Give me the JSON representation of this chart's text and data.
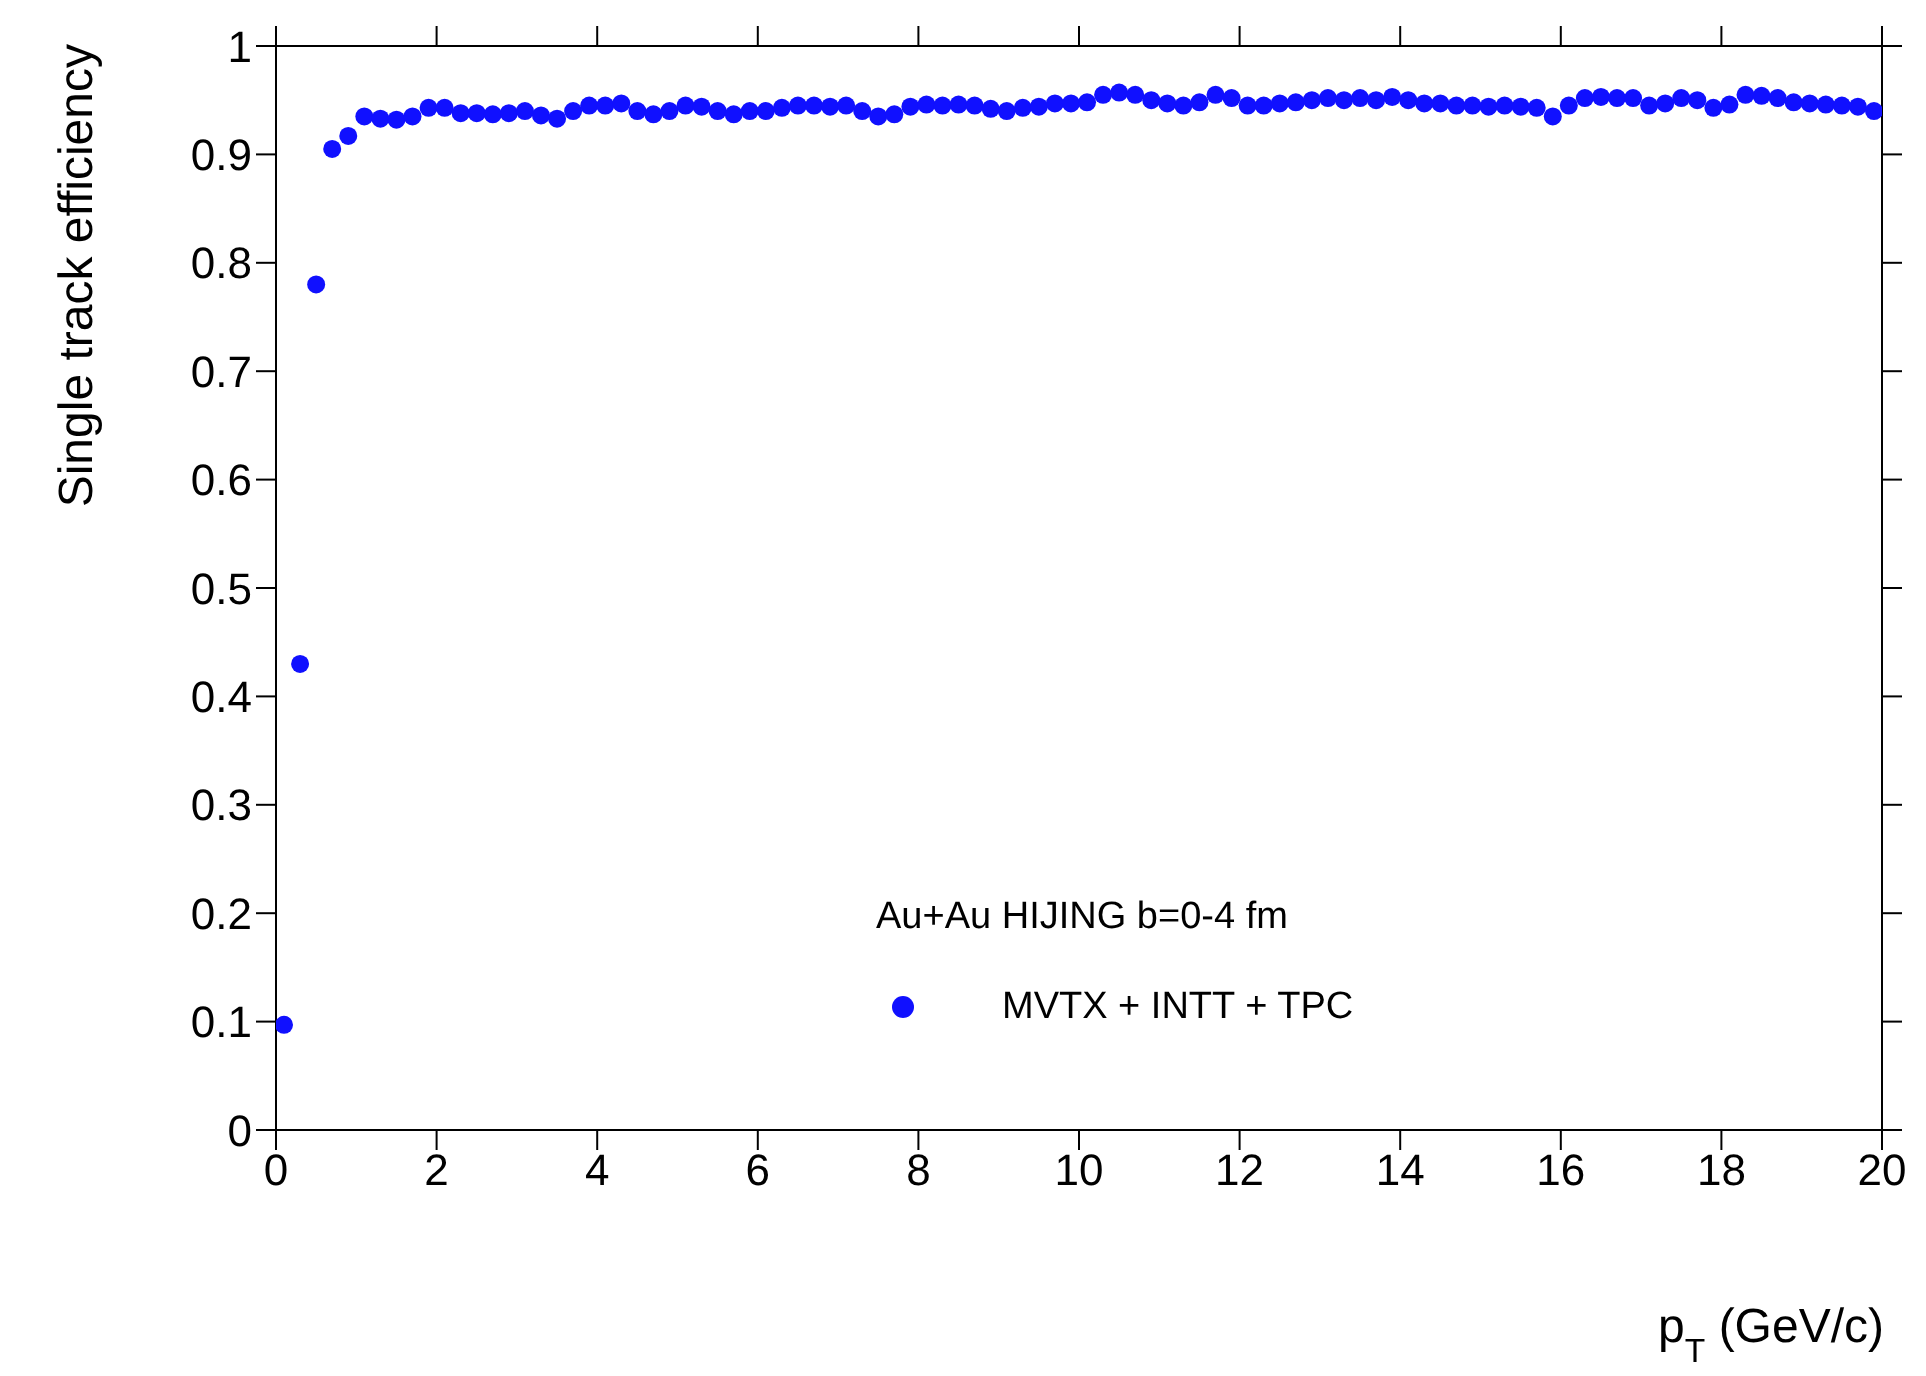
{
  "chart_data": {
    "type": "scatter",
    "xlabel": "p$_{T}$ (GeV/c)",
    "ylabel": "Single track efficiency",
    "legend_title": "Au+Au HIJING b=0-4 fm",
    "series": [
      {
        "name": "MVTX + INTT + TPC",
        "color": "#1010ff",
        "x": [
          0.1,
          0.3,
          0.5,
          0.7,
          0.9,
          1.1,
          1.3,
          1.5,
          1.7,
          1.9,
          2.1,
          2.3,
          2.5,
          2.7,
          2.9,
          3.1,
          3.3,
          3.5,
          3.7,
          3.9,
          4.1,
          4.3,
          4.5,
          4.7,
          4.9,
          5.1,
          5.3,
          5.5,
          5.7,
          5.9,
          6.1,
          6.3,
          6.5,
          6.7,
          6.9,
          7.1,
          7.3,
          7.5,
          7.7,
          7.9,
          8.1,
          8.3,
          8.5,
          8.7,
          8.9,
          9.1,
          9.3,
          9.5,
          9.7,
          9.9,
          10.1,
          10.3,
          10.5,
          10.7,
          10.9,
          11.1,
          11.3,
          11.5,
          11.7,
          11.9,
          12.1,
          12.3,
          12.5,
          12.7,
          12.9,
          13.1,
          13.3,
          13.5,
          13.7,
          13.9,
          14.1,
          14.3,
          14.5,
          14.7,
          14.9,
          15.1,
          15.3,
          15.5,
          15.7,
          15.9,
          16.1,
          16.3,
          16.5,
          16.7,
          16.9,
          17.1,
          17.3,
          17.5,
          17.7,
          17.9,
          18.1,
          18.3,
          18.5,
          18.7,
          18.9,
          19.1,
          19.3,
          19.5,
          19.7,
          19.9
        ],
        "values": [
          0.097,
          0.43,
          0.78,
          0.905,
          0.917,
          0.935,
          0.933,
          0.932,
          0.935,
          0.943,
          0.943,
          0.938,
          0.938,
          0.937,
          0.938,
          0.94,
          0.936,
          0.933,
          0.94,
          0.945,
          0.945,
          0.947,
          0.94,
          0.937,
          0.94,
          0.945,
          0.944,
          0.94,
          0.937,
          0.94,
          0.94,
          0.943,
          0.945,
          0.945,
          0.944,
          0.945,
          0.94,
          0.935,
          0.937,
          0.944,
          0.946,
          0.945,
          0.946,
          0.945,
          0.942,
          0.94,
          0.943,
          0.944,
          0.947,
          0.947,
          0.948,
          0.955,
          0.957,
          0.955,
          0.95,
          0.947,
          0.945,
          0.948,
          0.955,
          0.952,
          0.945,
          0.945,
          0.947,
          0.948,
          0.95,
          0.952,
          0.95,
          0.952,
          0.95,
          0.953,
          0.95,
          0.947,
          0.947,
          0.945,
          0.945,
          0.944,
          0.945,
          0.944,
          0.943,
          0.935,
          0.945,
          0.952,
          0.953,
          0.952,
          0.952,
          0.945,
          0.947,
          0.952,
          0.95,
          0.943,
          0.946,
          0.955,
          0.954,
          0.952,
          0.948,
          0.947,
          0.946,
          0.945,
          0.944,
          0.94
        ]
      }
    ],
    "xlim": [
      0,
      20
    ],
    "xticks": [
      0,
      2,
      4,
      6,
      8,
      10,
      12,
      14,
      16,
      18,
      20
    ],
    "ylim": [
      0,
      1
    ],
    "yticks": [
      0,
      0.1,
      0.2,
      0.3,
      0.4,
      0.5,
      0.6,
      0.7,
      0.8,
      0.9,
      1
    ],
    "legend": "bottom right",
    "marker": "circle"
  }
}
